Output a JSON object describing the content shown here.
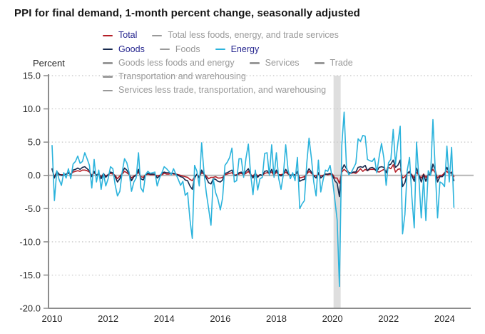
{
  "title": "PPI for final demand, 1-month percent change, seasonally adjusted",
  "colors": {
    "total": "#b41f27",
    "goods": "#17294e",
    "energy": "#2bb3dc",
    "inactive": "#999999",
    "active_text": "#26268f",
    "grid": "#c4c4c4",
    "zero_line": "#b5b5b5",
    "axis": "#8c8c8c",
    "tick_text": "#2b2b2b",
    "recession_band": "#dedede"
  },
  "legend": {
    "rows": [
      [
        {
          "label": "Total",
          "color": "#b41f27",
          "active": true
        },
        {
          "label": "Total less foods, energy, and trade services",
          "color": "#999999",
          "active": false
        }
      ],
      [
        {
          "label": "Goods",
          "color": "#17294e",
          "active": true
        },
        {
          "label": "Foods",
          "color": "#999999",
          "active": false
        },
        {
          "label": "Energy",
          "color": "#2bb3dc",
          "active": true
        }
      ],
      [
        {
          "label": "Goods less foods and energy",
          "color": "#999999",
          "active": false
        },
        {
          "label": "Services",
          "color": "#999999",
          "active": false
        },
        {
          "label": "Trade",
          "color": "#999999",
          "active": false
        }
      ],
      [
        {
          "label": "Transportation and warehousing",
          "color": "#999999",
          "active": false
        }
      ],
      [
        {
          "label": "Services less trade, transportation, and warehousing",
          "color": "#999999",
          "active": false
        }
      ]
    ]
  },
  "chart_data": {
    "type": "line",
    "title": "PPI for final demand, 1-month percent change, seasonally adjusted",
    "ylabel": "Percent",
    "xlabel": "",
    "ylim": [
      -20,
      15
    ],
    "ytick_step": 5,
    "y_tick_labels": [
      "15.0",
      "10.0",
      "5.0",
      "0.0",
      "-5.0",
      "-10.0",
      "-15.0",
      "-20.0"
    ],
    "y_tick_values": [
      15,
      10,
      5,
      0,
      -5,
      -10,
      -15,
      -20
    ],
    "x_tick_labels": [
      "2010",
      "2012",
      "2014",
      "2016",
      "2018",
      "2020",
      "2022",
      "2024"
    ],
    "x_start_month": "2010-01",
    "x_end_month": "2024-05",
    "grid": "dotted",
    "legend_position": "top",
    "recession_band": {
      "from": "2020-02",
      "to": "2020-04"
    },
    "series": [
      {
        "name": "Total",
        "color": "#b41f27",
        "values": [
          0.9,
          -0.2,
          0.5,
          0.1,
          0.1,
          0.1,
          0.2,
          0.3,
          0.2,
          0.5,
          0.6,
          0.7,
          0.6,
          0.8,
          0.8,
          0.7,
          0.5,
          0.0,
          0.4,
          0.0,
          0.2,
          -0.2,
          0.2,
          -0.1,
          0.1,
          0.3,
          0.2,
          0.0,
          -0.5,
          -0.1,
          0.2,
          0.6,
          0.4,
          0.1,
          -0.4,
          -0.1,
          0.1,
          0.5,
          -0.2,
          -0.3,
          0.1,
          0.2,
          0.1,
          0.1,
          0.1,
          -0.1,
          0.0,
          0.1,
          0.3,
          0.2,
          0.2,
          0.3,
          0.2,
          0.2,
          0.1,
          0.0,
          -0.1,
          -0.2,
          -0.3,
          -0.6,
          -0.8,
          -0.2,
          0.1,
          -0.2,
          0.4,
          0.2,
          -0.1,
          -0.5,
          -0.3,
          -0.3,
          -0.2,
          -0.4,
          -0.4,
          -0.3,
          0.1,
          0.2,
          0.3,
          0.4,
          0.0,
          0.1,
          0.2,
          0.3,
          0.1,
          0.3,
          0.6,
          0.1,
          -0.1,
          0.3,
          -0.1,
          0.1,
          0.0,
          0.3,
          0.4,
          0.3,
          0.5,
          0.0,
          0.5,
          0.1,
          0.1,
          0.2,
          0.5,
          0.2,
          0.0,
          0.1,
          0.1,
          0.4,
          -0.4,
          -0.3,
          -0.2,
          0.2,
          0.6,
          0.3,
          0.0,
          -0.1,
          0.2,
          -0.1,
          0.0,
          0.2,
          0.1,
          0.2,
          0.2,
          -0.4,
          -0.4,
          -1.2,
          0.5,
          0.9,
          0.6,
          0.3,
          0.3,
          0.4,
          0.3,
          0.6,
          1.0,
          0.6,
          0.9,
          0.7,
          0.9,
          0.9,
          0.9,
          0.6,
          0.5,
          0.7,
          0.9,
          0.4,
          1.2,
          1.0,
          1.6,
          0.5,
          0.9,
          1.0,
          -0.4,
          -0.2,
          0.3,
          0.4,
          0.1,
          -0.4,
          0.5,
          0.0,
          -0.4,
          0.2,
          -0.3,
          0.1,
          0.4,
          0.9,
          0.4,
          -0.4,
          0.0,
          0.0,
          0.4,
          0.6,
          0.2,
          0.5,
          -0.2
        ]
      },
      {
        "name": "Goods",
        "color": "#17294e",
        "values": [
          1.0,
          -0.4,
          0.6,
          0.2,
          0.0,
          0.0,
          0.2,
          0.4,
          0.1,
          0.8,
          0.9,
          1.1,
          0.9,
          1.2,
          1.3,
          1.0,
          0.7,
          -0.2,
          0.6,
          0.0,
          0.3,
          -0.5,
          0.3,
          -0.3,
          0.1,
          0.5,
          0.4,
          -0.2,
          -1.0,
          -0.5,
          0.4,
          1.1,
          0.8,
          0.2,
          -0.8,
          -0.2,
          0.0,
          0.9,
          -0.5,
          -0.7,
          0.1,
          0.3,
          0.2,
          0.2,
          0.2,
          -0.4,
          -0.1,
          0.3,
          0.5,
          0.4,
          0.4,
          0.3,
          0.3,
          0.2,
          0.0,
          -0.2,
          -0.3,
          -0.7,
          -0.8,
          -1.6,
          -2.1,
          -0.4,
          0.2,
          -0.4,
          0.8,
          0.2,
          -0.4,
          -1.1,
          -1.3,
          -0.5,
          -0.6,
          -0.9,
          -1.0,
          -0.7,
          0.3,
          0.4,
          0.6,
          0.8,
          0.0,
          0.0,
          0.4,
          0.5,
          0.1,
          0.6,
          1.0,
          0.2,
          -0.4,
          0.3,
          -0.3,
          0.1,
          0.0,
          0.6,
          0.7,
          0.2,
          0.9,
          0.1,
          0.8,
          0.1,
          -0.1,
          0.2,
          0.9,
          0.3,
          0.0,
          0.1,
          0.0,
          0.6,
          -0.9,
          -0.7,
          -0.6,
          0.4,
          1.0,
          0.5,
          -0.1,
          -0.4,
          0.4,
          -0.4,
          -0.1,
          0.2,
          0.2,
          0.3,
          0.0,
          -0.8,
          -1.2,
          -3.2,
          0.8,
          1.6,
          1.0,
          0.4,
          0.4,
          0.5,
          0.5,
          1.2,
          1.3,
          1.2,
          1.5,
          0.7,
          1.1,
          1.2,
          1.0,
          0.6,
          1.2,
          1.3,
          1.2,
          0.4,
          1.5,
          1.7,
          2.3,
          1.2,
          1.5,
          2.3,
          -1.7,
          -1.1,
          0.3,
          0.6,
          -0.1,
          -0.9,
          1.1,
          0.1,
          -1.0,
          0.1,
          -0.9,
          0.1,
          0.1,
          1.7,
          0.8,
          -1.0,
          -0.2,
          -0.2,
          0.2,
          1.2,
          0.4,
          0.4,
          -0.8
        ]
      },
      {
        "name": "Energy",
        "color": "#2bb3dc",
        "values": [
          4.5,
          -3.8,
          0.7,
          -0.6,
          -1.5,
          0.4,
          -0.4,
          1.0,
          -0.5,
          1.7,
          2.1,
          2.9,
          1.8,
          2.1,
          3.4,
          2.5,
          1.5,
          -1.9,
          2.4,
          -1.0,
          0.8,
          -2.1,
          0.3,
          -1.6,
          -0.5,
          1.3,
          1.0,
          -1.4,
          -3.1,
          -2.4,
          0.5,
          2.5,
          1.9,
          0.4,
          -2.4,
          -1.0,
          -0.4,
          3.4,
          -1.9,
          -2.5,
          0.1,
          0.6,
          0.3,
          0.4,
          0.5,
          -1.6,
          -0.4,
          0.4,
          1.3,
          1.0,
          0.6,
          0.1,
          1.0,
          0.2,
          -0.6,
          -1.5,
          -0.9,
          -3.0,
          -2.6,
          -6.6,
          -9.5,
          1.5,
          0.6,
          -1.6,
          4.9,
          0.6,
          -2.6,
          -5.0,
          -7.5,
          -0.5,
          -2.6,
          -3.6,
          -5.2,
          -3.4,
          1.5,
          2.0,
          2.7,
          4.1,
          -1.0,
          -0.8,
          2.5,
          2.5,
          -0.3,
          2.6,
          4.7,
          0.2,
          -2.9,
          0.8,
          -2.2,
          -0.5,
          -0.3,
          3.3,
          3.4,
          0.0,
          4.6,
          -0.3,
          3.4,
          -0.5,
          -2.1,
          0.1,
          4.6,
          0.8,
          -0.5,
          0.4,
          -0.8,
          2.7,
          -5.0,
          -4.3,
          -3.8,
          1.8,
          5.6,
          2.6,
          -1.0,
          -3.1,
          2.3,
          -2.5,
          -0.7,
          0.8,
          0.6,
          1.5,
          -0.6,
          -3.6,
          -6.7,
          -16.7,
          4.5,
          9.5,
          1.2,
          0.1,
          0.4,
          1.1,
          1.8,
          5.5,
          5.1,
          6.0,
          5.9,
          2.4,
          2.2,
          2.1,
          2.6,
          0.4,
          2.8,
          4.8,
          2.6,
          -1.5,
          1.9,
          2.4,
          6.9,
          1.7,
          4.8,
          7.4,
          -8.8,
          -5.9,
          0.7,
          2.7,
          -3.3,
          -7.9,
          5.0,
          -0.4,
          -6.4,
          -0.4,
          -6.8,
          0.7,
          0.0,
          8.4,
          0.9,
          -6.4,
          -1.0,
          -1.2,
          -1.7,
          4.4,
          -1.0,
          4.2,
          -4.8
        ]
      }
    ]
  }
}
